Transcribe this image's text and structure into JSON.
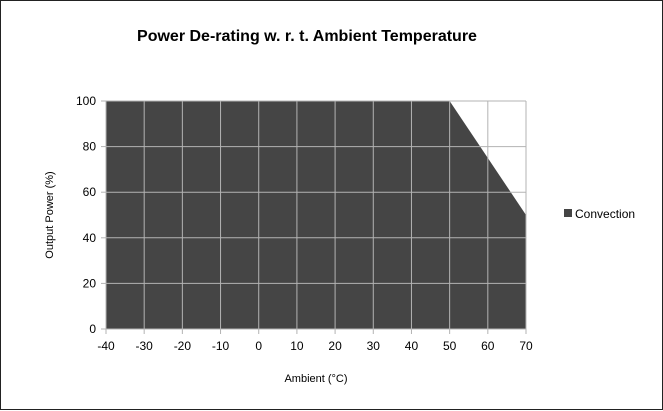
{
  "chart_data": {
    "type": "area",
    "title": "Power De-rating w. r. t. Ambient Temperature",
    "xlabel": "Ambient (°C)",
    "ylabel": "Output Power (%)",
    "x": [
      -40,
      -30,
      -20,
      -10,
      0,
      10,
      20,
      30,
      40,
      50,
      60,
      70
    ],
    "xlim": [
      -40,
      70
    ],
    "ylim": [
      0,
      100
    ],
    "x_ticks": [
      -40,
      -30,
      -20,
      -10,
      0,
      10,
      20,
      30,
      40,
      50,
      60,
      70
    ],
    "y_ticks": [
      0,
      20,
      40,
      60,
      80,
      100
    ],
    "grid": true,
    "legend_position": "right",
    "series": [
      {
        "name": "Convection",
        "values": [
          100,
          100,
          100,
          100,
          100,
          100,
          100,
          100,
          100,
          100,
          75,
          50
        ],
        "color": "#454545"
      }
    ]
  }
}
